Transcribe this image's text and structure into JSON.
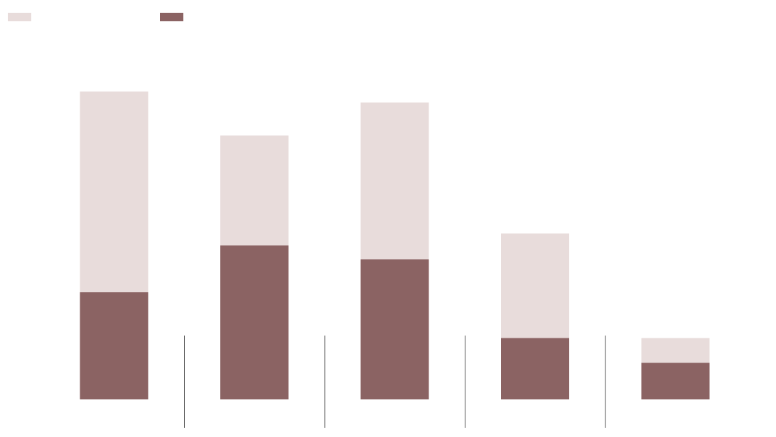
{
  "chart_data": {
    "type": "bar",
    "stacked": true,
    "categories": [
      "",
      "",
      "",
      "",
      ""
    ],
    "series": [
      {
        "values": [
          117,
          168,
          153,
          67,
          40
        ],
        "color": "#8B6363"
      },
      {
        "values": [
          219,
          120,
          171,
          114,
          27
        ],
        "color": "#E8DCDB"
      }
    ],
    "legend_order": [
      1,
      0
    ],
    "legend_position": "top-left",
    "ylim": [
      0,
      336
    ],
    "grid": false,
    "category_separators": true
  }
}
